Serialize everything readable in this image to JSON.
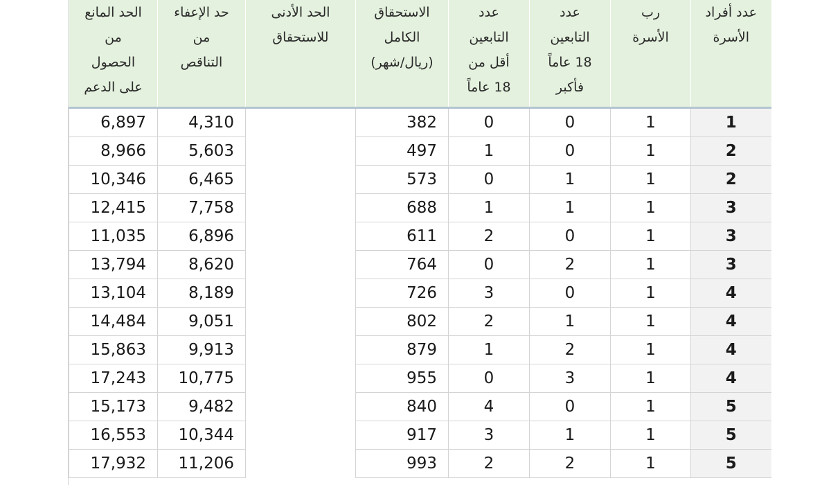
{
  "table": {
    "headers": {
      "members": [
        "عدد أفراد",
        "الأسرة"
      ],
      "head": [
        "رب",
        "الأسرة"
      ],
      "dep18": [
        "عدد",
        "التابعين",
        "18 عاماً",
        "فأكبر"
      ],
      "depu18": [
        "عدد",
        "التابعين",
        "أقل من",
        "18 عاماً"
      ],
      "full": [
        "الاستحقاق",
        "الكامل",
        "(ريال/شهر)"
      ],
      "min": [
        "الحد الأدنى",
        "للاستحقاق"
      ],
      "exempt": [
        "حد الإعفاء",
        "من",
        "التناقص"
      ],
      "bar": [
        "الحد المانع",
        "من",
        "الحصول",
        "على الدعم"
      ]
    },
    "rows": [
      {
        "members": "1",
        "head": "1",
        "dep18": "0",
        "depu18": "0",
        "full": "382",
        "min": "",
        "exempt": "4,310",
        "bar": "6,897"
      },
      {
        "members": "2",
        "head": "1",
        "dep18": "0",
        "depu18": "1",
        "full": "497",
        "min": "",
        "exempt": "5,603",
        "bar": "8,966"
      },
      {
        "members": "2",
        "head": "1",
        "dep18": "1",
        "depu18": "0",
        "full": "573",
        "min": "",
        "exempt": "6,465",
        "bar": "10,346"
      },
      {
        "members": "3",
        "head": "1",
        "dep18": "1",
        "depu18": "1",
        "full": "688",
        "min": "",
        "exempt": "7,758",
        "bar": "12,415"
      },
      {
        "members": "3",
        "head": "1",
        "dep18": "0",
        "depu18": "2",
        "full": "611",
        "min": "",
        "exempt": "6,896",
        "bar": "11,035"
      },
      {
        "members": "3",
        "head": "1",
        "dep18": "2",
        "depu18": "0",
        "full": "764",
        "min": "",
        "exempt": "8,620",
        "bar": "13,794"
      },
      {
        "members": "4",
        "head": "1",
        "dep18": "0",
        "depu18": "3",
        "full": "726",
        "min": "",
        "exempt": "8,189",
        "bar": "13,104"
      },
      {
        "members": "4",
        "head": "1",
        "dep18": "1",
        "depu18": "2",
        "full": "802",
        "min": "",
        "exempt": "9,051",
        "bar": "14,484"
      },
      {
        "members": "4",
        "head": "1",
        "dep18": "2",
        "depu18": "1",
        "full": "879",
        "min": "",
        "exempt": "9,913",
        "bar": "15,863"
      },
      {
        "members": "4",
        "head": "1",
        "dep18": "3",
        "depu18": "0",
        "full": "955",
        "min": "",
        "exempt": "10,775",
        "bar": "17,243"
      },
      {
        "members": "5",
        "head": "1",
        "dep18": "0",
        "depu18": "4",
        "full": "840",
        "min": "",
        "exempt": "9,482",
        "bar": "15,173"
      },
      {
        "members": "5",
        "head": "1",
        "dep18": "1",
        "depu18": "3",
        "full": "917",
        "min": "",
        "exempt": "10,344",
        "bar": "16,553"
      },
      {
        "members": "5",
        "head": "1",
        "dep18": "2",
        "depu18": "2",
        "full": "993",
        "min": "",
        "exempt": "11,206",
        "bar": "17,932"
      }
    ]
  }
}
